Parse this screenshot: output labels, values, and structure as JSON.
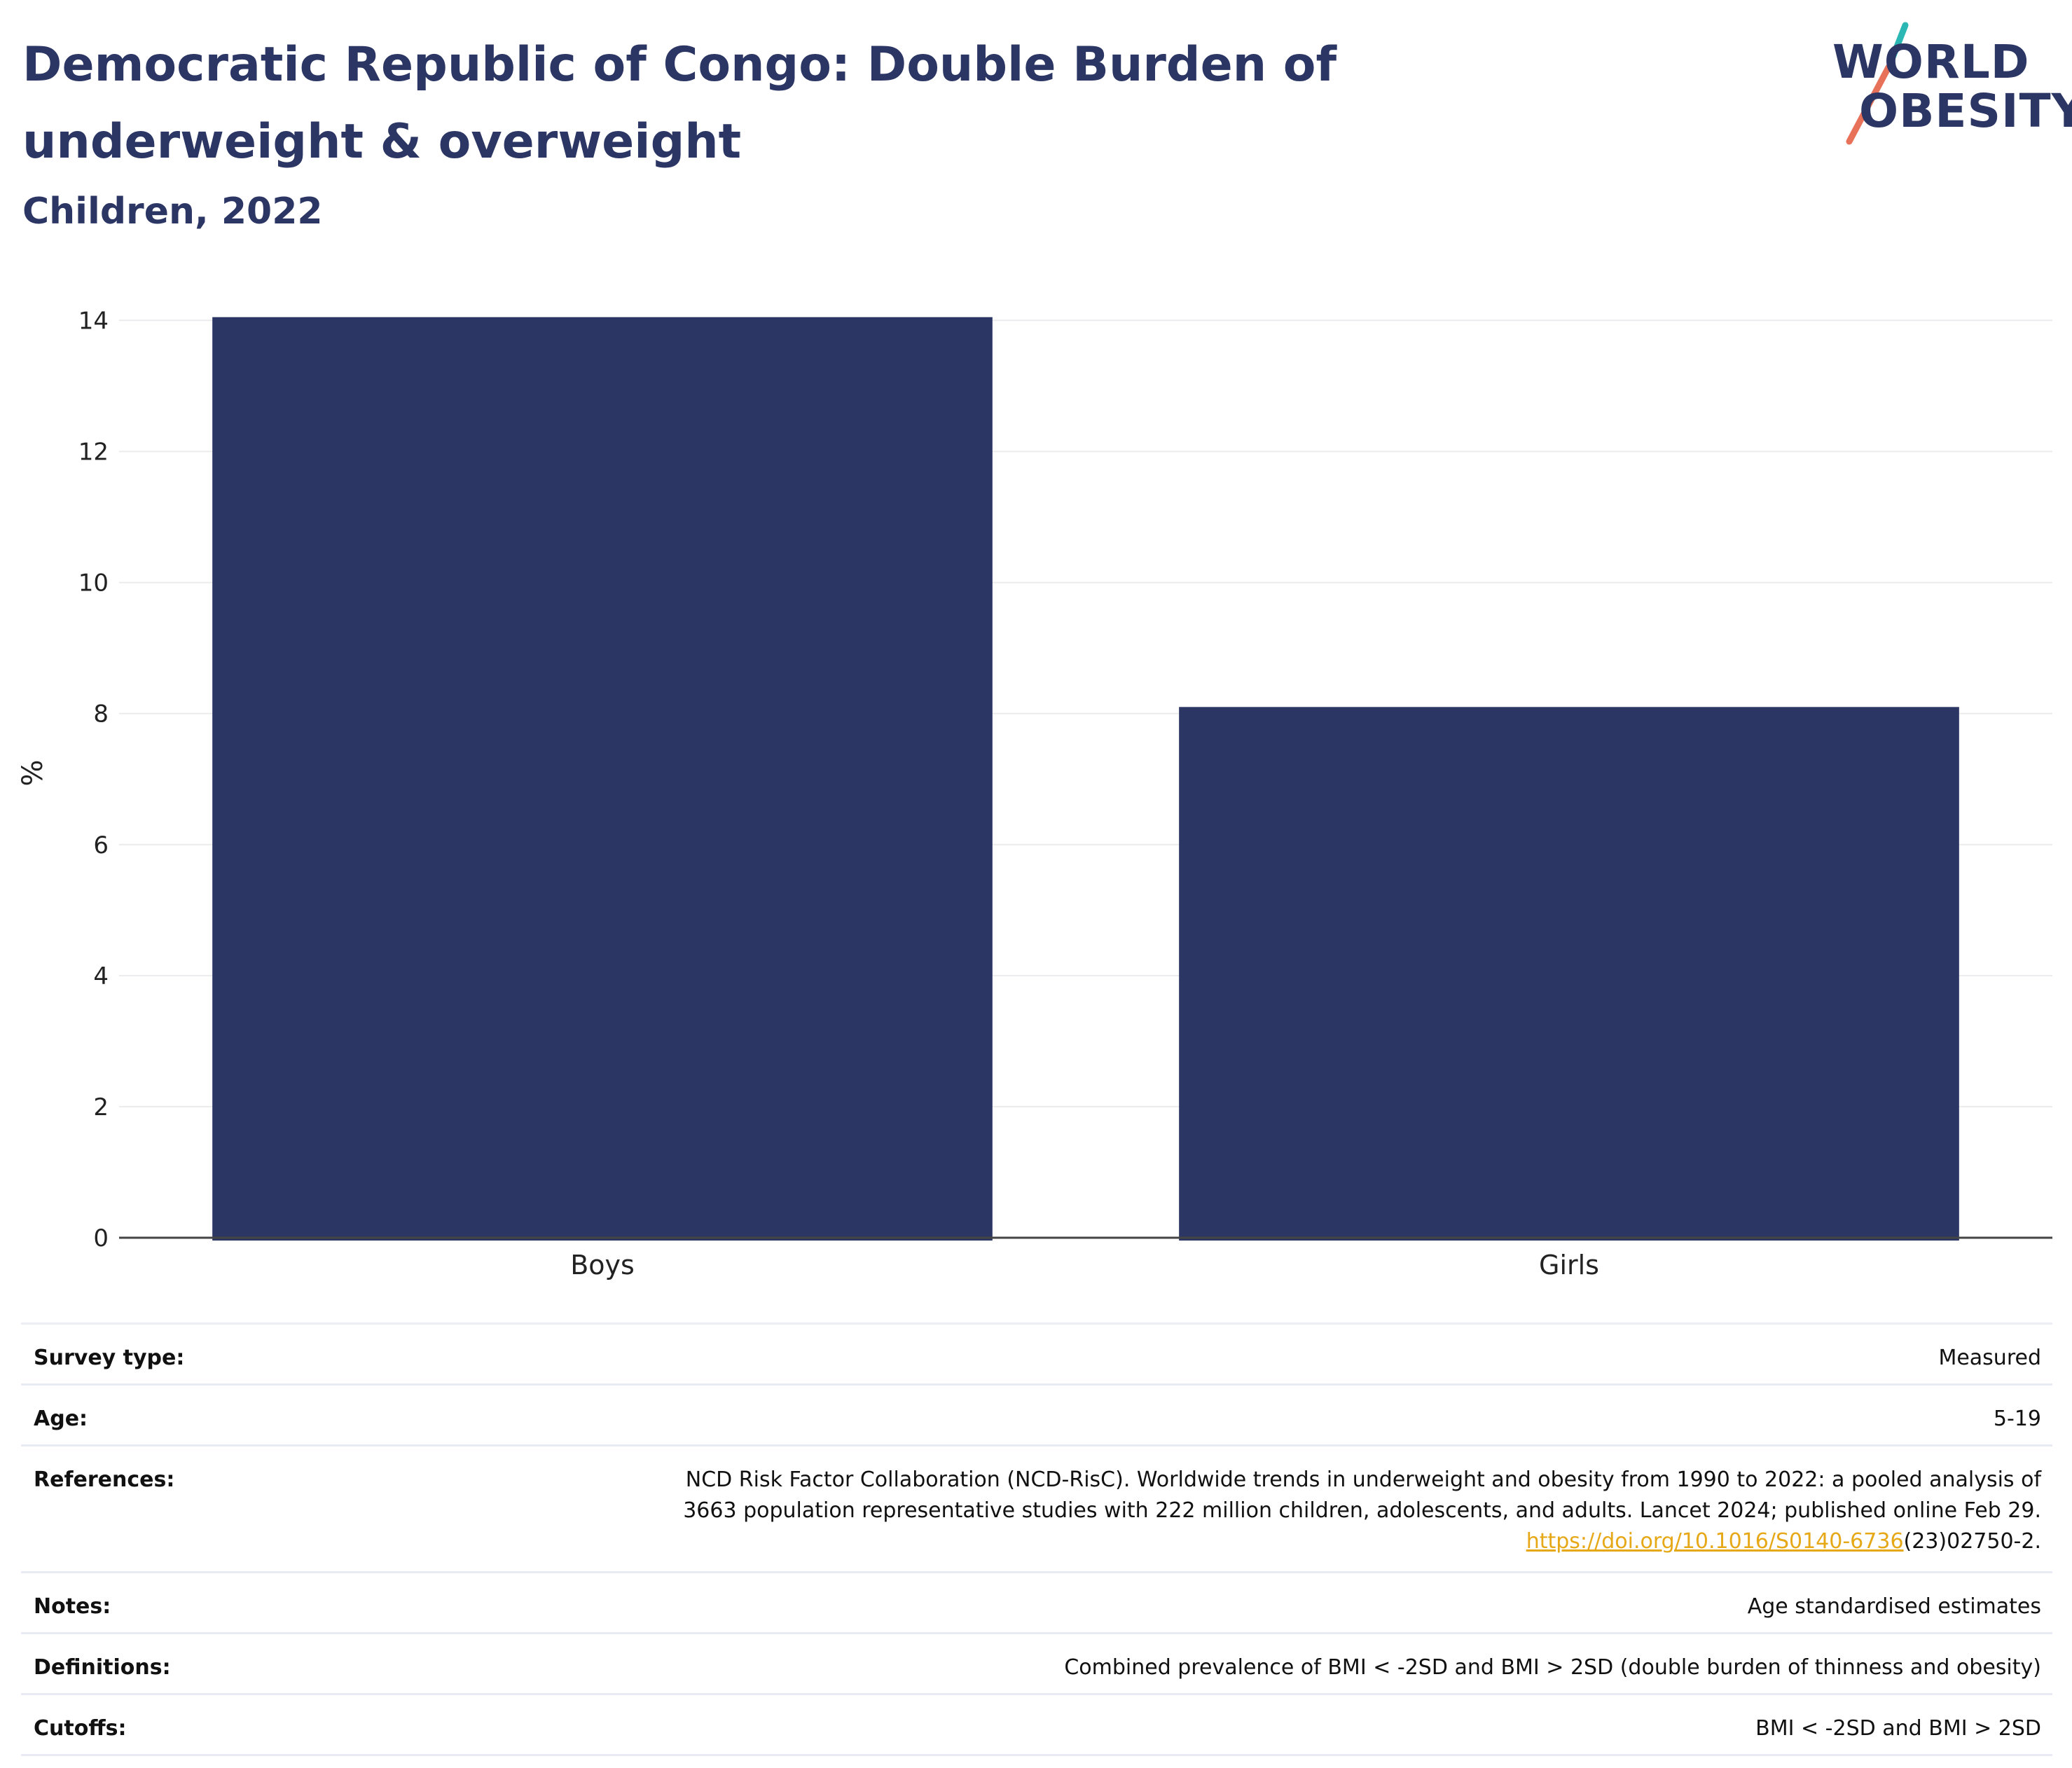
{
  "header": {
    "title": "Democratic Republic of Congo: Double Burden of underweight & overweight",
    "subtitle": "Children, 2022"
  },
  "logo": {
    "line1": "WORLD",
    "line2": "OBESITY",
    "colors": {
      "text": "#2c3664",
      "teal": "#2bb7b3",
      "coral": "#e8715a"
    }
  },
  "chart_data": {
    "type": "bar",
    "categories": [
      "Boys",
      "Girls"
    ],
    "values": [
      14.05,
      8.1
    ],
    "ylabel": "%",
    "xlabel": "",
    "ylim": [
      0,
      14.4
    ],
    "yticks": [
      0,
      2,
      4,
      6,
      8,
      10,
      12,
      14
    ],
    "grid": true,
    "bar_color": "#2c3664"
  },
  "meta": {
    "survey_type": {
      "label": "Survey type:",
      "value": "Measured"
    },
    "age": {
      "label": "Age:",
      "value": "5-19"
    },
    "references": {
      "label": "References:",
      "line1": "NCD Risk Factor Collaboration (NCD-RisC). Worldwide trends in underweight and obesity from 1990 to 2022: a pooled analysis of",
      "line2": "3663 population representative studies with 222 million children, adolescents, and adults. Lancet 2024; published online Feb 29.",
      "link": "https://doi.org/10.1016/S0140-6736",
      "link_suffix": "(23)02750-2."
    },
    "notes": {
      "label": "Notes:",
      "value": "Age standardised estimates"
    },
    "definitions": {
      "label": "Definitions:",
      "value": "Combined prevalence of BMI < -2SD and BMI > 2SD (double burden of thinness and obesity)"
    },
    "cutoffs": {
      "label": "Cutoffs:",
      "value": "BMI < -2SD and BMI > 2SD"
    }
  }
}
